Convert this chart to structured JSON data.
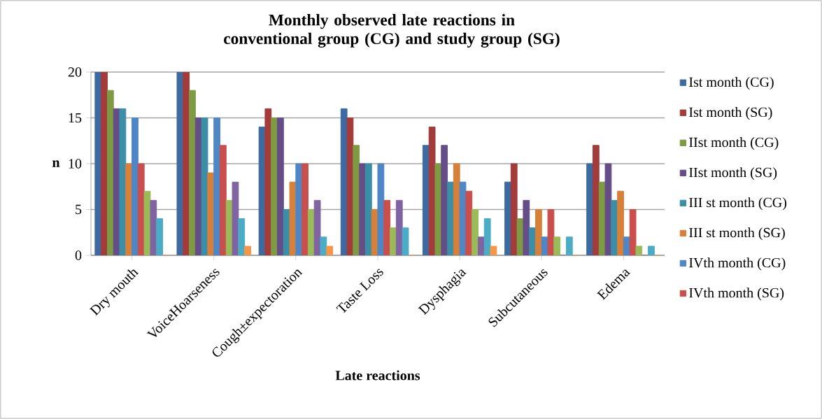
{
  "chart_data": {
    "type": "bar",
    "title": "Monthly observed late reactions in conventional group (CG) and study group (SG)",
    "xlabel": "Late reactions",
    "ylabel": "n",
    "categories": [
      "Dry mouth",
      "VoiceHoarseness",
      "Cough±expectoration",
      "Taste Loss",
      "Dysphagia",
      "Subcutaneous",
      "Edema"
    ],
    "series": [
      {
        "name": "Ist month (CG)",
        "color": "#3d6aa0",
        "values": [
          20,
          20,
          14,
          16,
          12,
          8,
          10
        ]
      },
      {
        "name": "Ist month (SG)",
        "color": "#a33b3a",
        "values": [
          20,
          20,
          16,
          15,
          14,
          10,
          12
        ]
      },
      {
        "name": "IIst month (CG)",
        "color": "#7e9b43",
        "values": [
          18,
          18,
          15,
          12,
          10,
          4,
          8
        ]
      },
      {
        "name": "IIst month (SG)",
        "color": "#654e87",
        "values": [
          16,
          15,
          15,
          10,
          12,
          6,
          10
        ]
      },
      {
        "name": "III st month (CG)",
        "color": "#3a8ea6",
        "values": [
          16,
          15,
          5,
          10,
          8,
          3,
          6
        ]
      },
      {
        "name": "III st month (SG)",
        "color": "#d7803a",
        "values": [
          10,
          9,
          8,
          5,
          10,
          5,
          7
        ]
      },
      {
        "name": "IVth month (CG)",
        "color": "#4f86c6",
        "values": [
          15,
          15,
          10,
          10,
          8,
          2,
          2
        ]
      },
      {
        "name": "IVth month (SG)",
        "color": "#c94e4c",
        "values": [
          10,
          12,
          10,
          6,
          7,
          5,
          5
        ]
      },
      {
        "color": "#9bbb59",
        "values": [
          7,
          6,
          5,
          3,
          5,
          2,
          1
        ]
      },
      {
        "color": "#8064a2",
        "values": [
          6,
          8,
          6,
          6,
          2,
          0,
          0
        ]
      },
      {
        "color": "#4bacc6",
        "values": [
          4,
          4,
          2,
          3,
          4,
          2,
          1
        ]
      },
      {
        "color": "#f79646",
        "values": [
          0,
          1,
          1,
          0,
          1,
          0,
          0
        ]
      }
    ],
    "ylim": [
      0,
      20
    ],
    "yticks": [
      0,
      5,
      10,
      15,
      20
    ],
    "grid": "y",
    "legend": "right"
  }
}
